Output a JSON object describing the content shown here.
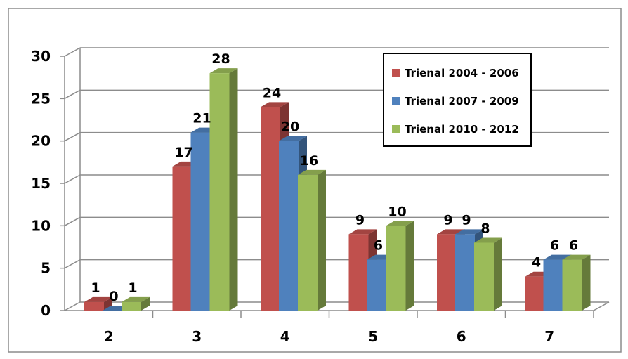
{
  "chart_data": {
    "type": "bar",
    "title": "",
    "xlabel": "",
    "ylabel": "",
    "categories": [
      "2",
      "3",
      "4",
      "5",
      "6",
      "7"
    ],
    "ylim": [
      0,
      30
    ],
    "yticks": [
      "0",
      "5",
      "10",
      "15",
      "20",
      "25",
      "30"
    ],
    "grid": true,
    "legend_position": "top-right",
    "series": [
      {
        "name": "Trienal 2004 - 2006",
        "color": "#c0504d",
        "values": [
          1,
          17,
          24,
          9,
          9,
          4
        ]
      },
      {
        "name": "Trienal 2007 - 2009",
        "color": "#4f81bd",
        "values": [
          0,
          21,
          20,
          6,
          9,
          6
        ]
      },
      {
        "name": "Trienal 2010 - 2012",
        "color": "#9bbb59",
        "values": [
          1,
          28,
          16,
          10,
          8,
          6
        ]
      }
    ]
  }
}
